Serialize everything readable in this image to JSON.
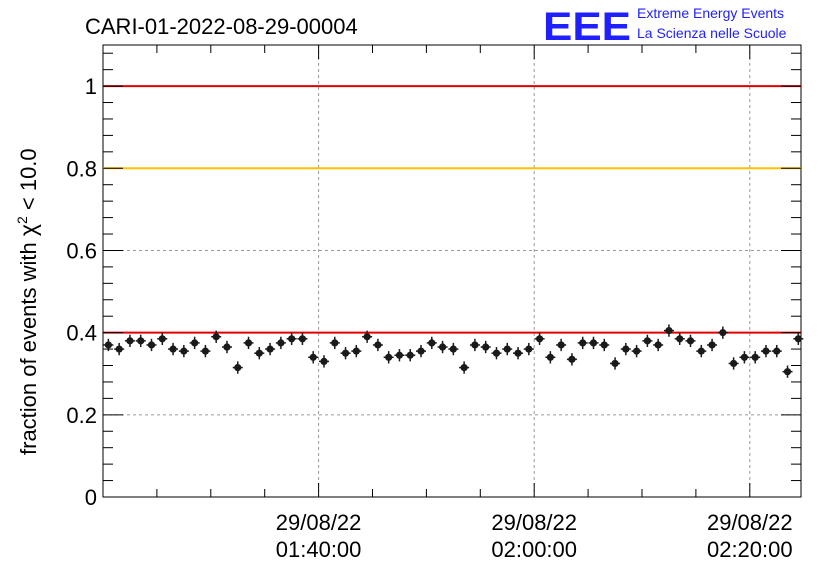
{
  "header": {
    "run_title": "CARI-01-2022-08-29-00004",
    "logo_text": "EEE",
    "logo_line1": "Extreme Energy Events",
    "logo_line2": "La Scienza nelle Scuole"
  },
  "colors": {
    "red_line": "#e00000",
    "orange_line": "#ffc000",
    "logo_blue": "#1f1fff",
    "marker": "#1a1a1a"
  },
  "chart_data": {
    "type": "scatter",
    "title": "CARI-01-2022-08-29-00004",
    "ylabel": "fraction of events with χ² < 10.0",
    "ylabel_prefix": "fraction of events with ",
    "ylabel_chi": "χ",
    "ylabel_sup": "2",
    "ylabel_suffix": " < 10.0",
    "ylim": [
      0,
      1.1
    ],
    "yticks": [
      "0",
      "0.2",
      "0.4",
      "0.6",
      "0.8",
      "1"
    ],
    "ytick_values": [
      0,
      0.2,
      0.4,
      0.6,
      0.8,
      1.0
    ],
    "x_axis": "time",
    "xlim_minutes": [
      "01:20:00",
      "02:24:45"
    ],
    "xticks": [
      {
        "date": "29/08/22",
        "time": "01:40:00"
      },
      {
        "date": "29/08/22",
        "time": "02:00:00"
      },
      {
        "date": "29/08/22",
        "time": "02:20:00"
      }
    ],
    "xtick_minutes": [
      20,
      40,
      60
    ],
    "grid": true,
    "reference_lines": [
      {
        "y": 1.0,
        "color": "red"
      },
      {
        "y": 0.8,
        "color": "orange"
      },
      {
        "y": 0.4,
        "color": "red"
      }
    ],
    "x_start": "01:20:00",
    "x_step_minutes": 1,
    "values": [
      0.37,
      0.36,
      0.38,
      0.38,
      0.37,
      0.385,
      0.36,
      0.355,
      0.375,
      0.355,
      0.39,
      0.365,
      0.315,
      0.375,
      0.35,
      0.36,
      0.375,
      0.385,
      0.385,
      0.34,
      0.33,
      0.375,
      0.35,
      0.355,
      0.39,
      0.37,
      0.34,
      0.345,
      0.345,
      0.355,
      0.375,
      0.365,
      0.36,
      0.315,
      0.37,
      0.365,
      0.35,
      0.36,
      0.35,
      0.36,
      0.385,
      0.34,
      0.37,
      0.335,
      0.375,
      0.375,
      0.37,
      0.325,
      0.36,
      0.355,
      0.38,
      0.37,
      0.405,
      0.385,
      0.38,
      0.355,
      0.37,
      0.4,
      0.325,
      0.34,
      0.34,
      0.355,
      0.355,
      0.305,
      0.385
    ],
    "error": 0.015
  }
}
